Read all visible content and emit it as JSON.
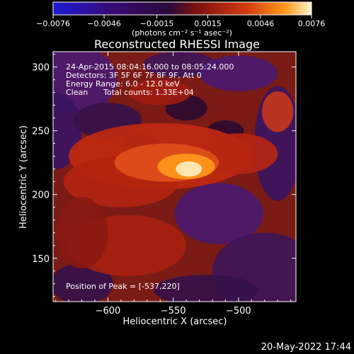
{
  "chart_data": {
    "type": "heatmap",
    "title": "Reconstructed RHESSI Image",
    "xlabel": "Heliocentric X (arcsec)",
    "ylabel": "Heliocentric Y (arcsec)",
    "x_ticks": [
      -600,
      -550,
      -500
    ],
    "x_tick_labels": [
      "−600",
      "−550",
      "−500"
    ],
    "y_ticks": [
      150,
      200,
      250,
      300
    ],
    "y_tick_labels": [
      "150",
      "200",
      "250",
      "300"
    ],
    "xlim": [
      -642,
      -456
    ],
    "ylim": [
      116,
      312
    ],
    "colorbar": {
      "min": -0.0076,
      "max": 0.0076,
      "ticks": [
        -0.0076,
        -0.0046,
        -0.0015,
        0.0015,
        0.0046,
        0.0076
      ],
      "tick_labels": [
        "−0.0076",
        "−0.0046",
        "−0.0015",
        "0.0015",
        "0.0046",
        "0.0076"
      ],
      "units": "(photons cm⁻² s⁻¹ asec⁻²)",
      "colors": [
        "#1b1bd6",
        "#3a0a78",
        "#2a0a3a",
        "#7a1010",
        "#d43a10",
        "#ff9a1a",
        "#fff5d0"
      ]
    },
    "annotations": {
      "time_range": "24-Apr-2015 08:04:16.000 to 08:05:24.000",
      "detectors": "Detectors: 3F 5F 6F 7F 8F 9F, Att 0",
      "energy": "Energy Range: 6.0 - 12.0 keV",
      "method": "Clean",
      "total_counts": "Total counts: 1.33E+04",
      "peak": "Position of Peak = [-537,220]"
    },
    "peak_position": [
      -537,
      220
    ],
    "footer_date": "20-May-2022 17:44"
  }
}
